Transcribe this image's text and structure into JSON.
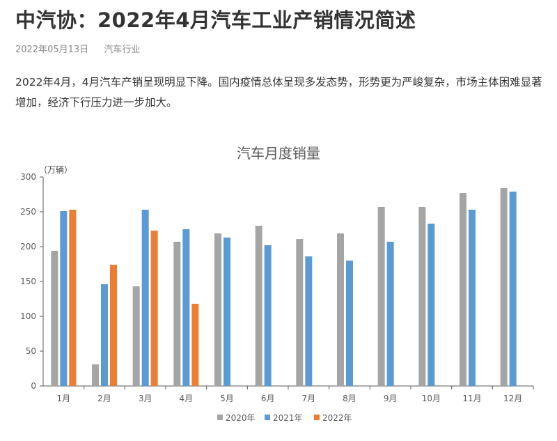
{
  "article": {
    "title": "中汽协：2022年4月汽车工业产销情况简述",
    "date": "2022年05月13日",
    "category": "汽车行业",
    "intro": "2022年4月，4月汽车产销呈现明显下降。国内疫情总体呈现多发态势，形势更为严峻复杂，市场主体困难显著增加，经济下行压力进一步加大。"
  },
  "chart_data": {
    "type": "bar",
    "title": "汽车月度销量",
    "unit_label": "（万辆）",
    "categories": [
      "1月",
      "2月",
      "3月",
      "4月",
      "5月",
      "6月",
      "7月",
      "8月",
      "9月",
      "10月",
      "11月",
      "12月"
    ],
    "series": [
      {
        "name": "2020年",
        "color": "#a5a5a5",
        "values": [
          194,
          31,
          143,
          207,
          219,
          230,
          211,
          219,
          257,
          257,
          277,
          284
        ]
      },
      {
        "name": "2021年",
        "color": "#5b9bd5",
        "values": [
          251,
          146,
          253,
          225,
          213,
          202,
          186,
          180,
          207,
          233,
          253,
          279
        ]
      },
      {
        "name": "2022年",
        "color": "#ed7d31",
        "values": [
          253,
          174,
          223,
          118,
          null,
          null,
          null,
          null,
          null,
          null,
          null,
          null
        ]
      }
    ],
    "ylim": [
      0,
      300
    ],
    "yticks": [
      0,
      50,
      100,
      150,
      200,
      250,
      300
    ],
    "legend_position": "bottom",
    "grid": false
  }
}
